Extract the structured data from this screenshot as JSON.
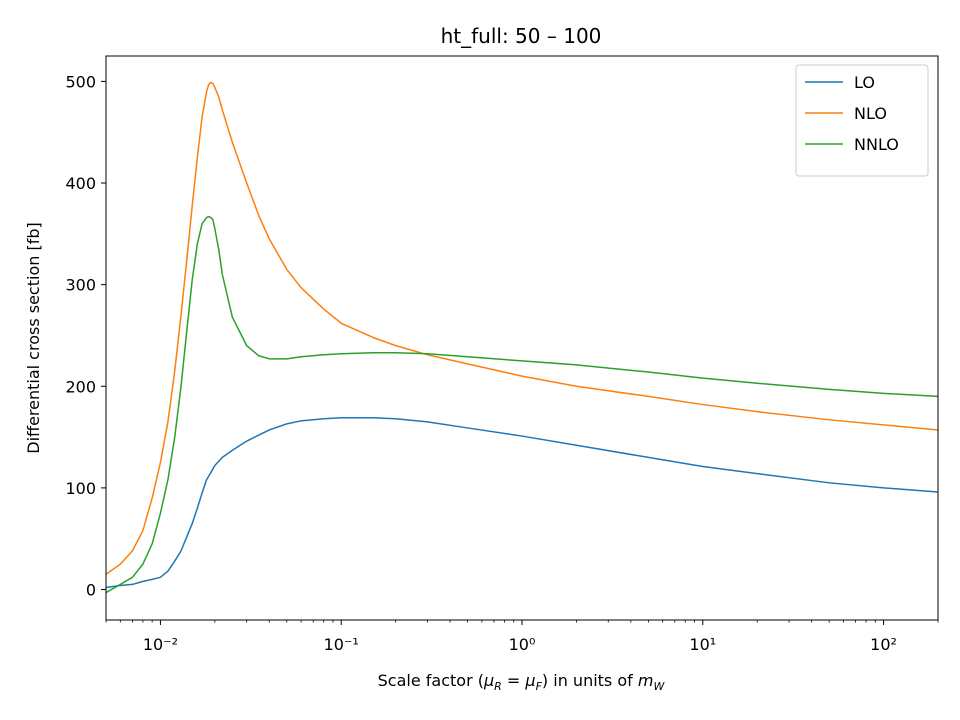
{
  "chart_data": {
    "type": "line",
    "title": "ht_full: 50 – 100",
    "xlabel": "Scale factor (μR = μF) in units of mW",
    "ylabel": "Differential cross section [fb]",
    "xscale": "log",
    "xlim": [
      0.005,
      200
    ],
    "ylim": [
      -30,
      525
    ],
    "x_ticks": [
      0.01,
      0.1,
      1,
      10,
      100
    ],
    "x_tick_labels": [
      "10⁻²",
      "10⁻¹",
      "10⁰",
      "10¹",
      "10²"
    ],
    "y_ticks": [
      0,
      100,
      200,
      300,
      400,
      500
    ],
    "y_tick_labels": [
      "0",
      "100",
      "200",
      "300",
      "400",
      "500"
    ],
    "grid": false,
    "legend_position": "top-right",
    "series": [
      {
        "name": "LO",
        "color": "#1f77b4",
        "x": [
          0.005,
          0.006,
          0.007,
          0.008,
          0.009,
          0.01,
          0.011,
          0.012,
          0.013,
          0.014,
          0.015,
          0.016,
          0.017,
          0.018,
          0.019,
          0.02,
          0.022,
          0.025,
          0.03,
          0.035,
          0.04,
          0.05,
          0.06,
          0.08,
          0.1,
          0.12,
          0.15,
          0.2,
          0.3,
          0.5,
          1,
          2,
          5,
          10,
          20,
          50,
          100,
          200
        ],
        "values": [
          2,
          4,
          5,
          8,
          10,
          12,
          18,
          28,
          38,
          52,
          65,
          80,
          95,
          108,
          115,
          122,
          130,
          137,
          146,
          152,
          157,
          163,
          166,
          168,
          169,
          169,
          169,
          168,
          165,
          159,
          151,
          142,
          130,
          121,
          114,
          105,
          100,
          96
        ]
      },
      {
        "name": "NLO",
        "color": "#ff7f0e",
        "x": [
          0.005,
          0.006,
          0.007,
          0.008,
          0.009,
          0.01,
          0.011,
          0.012,
          0.013,
          0.014,
          0.015,
          0.016,
          0.017,
          0.018,
          0.0185,
          0.019,
          0.0195,
          0.02,
          0.021,
          0.022,
          0.025,
          0.03,
          0.035,
          0.04,
          0.05,
          0.06,
          0.08,
          0.1,
          0.15,
          0.2,
          0.3,
          0.5,
          1,
          2,
          5,
          10,
          20,
          50,
          100,
          200
        ],
        "values": [
          15,
          25,
          38,
          58,
          90,
          125,
          165,
          215,
          270,
          325,
          378,
          425,
          465,
          490,
          497,
          499,
          498,
          494,
          485,
          472,
          440,
          400,
          368,
          345,
          315,
          297,
          276,
          262,
          248,
          240,
          231,
          222,
          210,
          200,
          190,
          182,
          175,
          167,
          162,
          157
        ]
      },
      {
        "name": "NNLO",
        "color": "#2ca02c",
        "x": [
          0.005,
          0.006,
          0.007,
          0.008,
          0.009,
          0.01,
          0.011,
          0.012,
          0.013,
          0.014,
          0.015,
          0.016,
          0.017,
          0.018,
          0.0185,
          0.019,
          0.0195,
          0.02,
          0.021,
          0.022,
          0.025,
          0.03,
          0.035,
          0.04,
          0.05,
          0.06,
          0.08,
          0.1,
          0.15,
          0.2,
          0.3,
          0.5,
          1,
          2,
          5,
          10,
          20,
          50,
          100,
          200
        ],
        "values": [
          -3,
          5,
          12,
          25,
          45,
          75,
          108,
          150,
          200,
          255,
          305,
          340,
          360,
          366,
          367,
          366,
          364,
          355,
          335,
          310,
          268,
          240,
          230,
          227,
          227,
          229,
          231,
          232,
          233,
          233,
          232,
          229,
          225,
          221,
          214,
          208,
          203,
          197,
          193,
          190
        ]
      }
    ]
  }
}
